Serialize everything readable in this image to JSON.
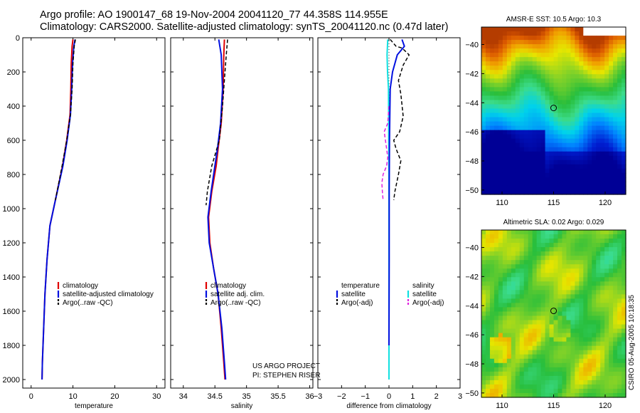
{
  "header": {
    "line1": "Argo profile: AO 1900147_68 19-Nov-2004 20041120_77 44.358S 114.955E",
    "line2": "Climatology: CARS2000. Satellite-adjusted climatology: synTS_20041120.nc (0.47d later)"
  },
  "credit": "CSIRO 05-Aug-2005 10:18:35",
  "project": {
    "line1": "US ARGO PROJECT",
    "line2": "PI: STEPHEN RISER"
  },
  "colors": {
    "red": "#e00000",
    "blue": "#0010e0",
    "black": "#000000",
    "cyan": "#10e0e0",
    "magenta": "#e020e0"
  },
  "chart_data": [
    {
      "type": "line",
      "xlabel": "temperature",
      "xlim": [
        -2,
        32
      ],
      "ylim": [
        0,
        2000
      ],
      "y_reversed": true,
      "xticks": [
        0,
        10,
        20,
        30
      ],
      "yticks": [
        0,
        200,
        400,
        600,
        800,
        1000,
        1200,
        1400,
        1600,
        1800,
        2000
      ],
      "legend": [
        {
          "label": "climatology",
          "color": "red",
          "dash": false
        },
        {
          "label": "satellite-adjusted climatology",
          "color": "blue",
          "dash": false
        },
        {
          "label": "Argo(..raw -QC)",
          "color": "black",
          "dash": true
        }
      ],
      "series": [
        {
          "color": "red",
          "width": 2,
          "points": [
            [
              10.0,
              10
            ],
            [
              9.8,
              50
            ],
            [
              9.6,
              150
            ],
            [
              9.5,
              300
            ],
            [
              9.3,
              450
            ],
            [
              8.5,
              600
            ],
            [
              7.5,
              750
            ],
            [
              5.8,
              950
            ],
            [
              4.5,
              1100
            ],
            [
              3.8,
              1300
            ],
            [
              3.3,
              1500
            ],
            [
              3.0,
              1700
            ],
            [
              2.7,
              1900
            ],
            [
              2.6,
              2000
            ]
          ]
        },
        {
          "color": "blue",
          "width": 2,
          "points": [
            [
              10.5,
              10
            ],
            [
              10.2,
              50
            ],
            [
              9.9,
              150
            ],
            [
              9.7,
              300
            ],
            [
              9.4,
              450
            ],
            [
              8.6,
              600
            ],
            [
              7.6,
              750
            ],
            [
              5.8,
              950
            ],
            [
              4.5,
              1100
            ],
            [
              3.8,
              1300
            ],
            [
              3.3,
              1500
            ],
            [
              3.0,
              1700
            ],
            [
              2.7,
              1900
            ],
            [
              2.6,
              2000
            ]
          ]
        },
        {
          "color": "black",
          "width": 1.5,
          "dash": true,
          "points": [
            [
              10.6,
              10
            ],
            [
              10.3,
              50
            ],
            [
              10.0,
              150
            ],
            [
              9.8,
              300
            ],
            [
              9.4,
              450
            ],
            [
              8.5,
              600
            ],
            [
              7.4,
              750
            ],
            [
              5.8,
              950
            ]
          ]
        }
      ]
    },
    {
      "type": "line",
      "xlabel": "salinity",
      "xlim": [
        33.8,
        36.05
      ],
      "ylim": [
        0,
        2000
      ],
      "y_reversed": true,
      "xticks": [
        34,
        34.5,
        35,
        35.5,
        36
      ],
      "legend": [
        {
          "label": "climatology",
          "color": "red",
          "dash": false
        },
        {
          "label": "satellite adj. clim.",
          "color": "blue",
          "dash": false
        },
        {
          "label": "Argo(..raw -QC)",
          "color": "black",
          "dash": true
        }
      ],
      "series": [
        {
          "color": "red",
          "width": 2,
          "points": [
            [
              34.65,
              10
            ],
            [
              34.64,
              100
            ],
            [
              34.63,
              300
            ],
            [
              34.6,
              500
            ],
            [
              34.55,
              650
            ],
            [
              34.52,
              750
            ],
            [
              34.45,
              900
            ],
            [
              34.4,
              1050
            ],
            [
              34.42,
              1200
            ],
            [
              34.48,
              1350
            ],
            [
              34.55,
              1500
            ],
            [
              34.6,
              1700
            ],
            [
              34.64,
              1900
            ],
            [
              34.66,
              2000
            ]
          ]
        },
        {
          "color": "blue",
          "width": 2,
          "points": [
            [
              34.56,
              10
            ],
            [
              34.6,
              100
            ],
            [
              34.62,
              300
            ],
            [
              34.59,
              500
            ],
            [
              34.54,
              650
            ],
            [
              34.5,
              750
            ],
            [
              34.44,
              900
            ],
            [
              34.39,
              1050
            ],
            [
              34.41,
              1200
            ],
            [
              34.48,
              1350
            ],
            [
              34.55,
              1500
            ],
            [
              34.61,
              1700
            ],
            [
              34.65,
              1900
            ],
            [
              34.67,
              2000
            ]
          ]
        },
        {
          "color": "black",
          "width": 1.5,
          "dash": true,
          "points": [
            [
              34.7,
              10
            ],
            [
              34.68,
              100
            ],
            [
              34.66,
              200
            ],
            [
              34.62,
              400
            ],
            [
              34.57,
              600
            ],
            [
              34.53,
              650
            ],
            [
              34.45,
              750
            ],
            [
              34.38,
              900
            ],
            [
              34.36,
              980
            ]
          ]
        }
      ]
    },
    {
      "type": "line",
      "xlabel": "difference from climatology",
      "xlim": [
        -3,
        3
      ],
      "ylim": [
        0,
        2000
      ],
      "y_reversed": true,
      "xticks": [
        -3,
        -2,
        -1,
        0,
        1,
        2,
        3
      ],
      "legend_left": [
        {
          "label": "temperature",
          "color": "",
          "dash": false
        },
        {
          "label": "satellite",
          "color": "blue",
          "dash": false
        },
        {
          "label": "Argo(-adj)",
          "color": "black",
          "dash": true
        }
      ],
      "legend_right": [
        {
          "label": "salinity",
          "color": "",
          "dash": false
        },
        {
          "label": "satellite",
          "color": "cyan",
          "dash": false
        },
        {
          "label": "Argo(-adj)",
          "color": "magenta",
          "dash": true
        }
      ],
      "series": [
        {
          "color": "cyan",
          "width": 2,
          "points": [
            [
              -0.05,
              10
            ],
            [
              -0.08,
              100
            ],
            [
              -0.06,
              200
            ],
            [
              -0.02,
              300
            ],
            [
              -0.01,
              600
            ],
            [
              0.0,
              900
            ],
            [
              0.0,
              1500
            ],
            [
              0.0,
              2000
            ]
          ]
        },
        {
          "color": "magenta",
          "width": 1.5,
          "dash": true,
          "points": [
            [
              0.0,
              400
            ],
            [
              -0.05,
              500
            ],
            [
              -0.2,
              550
            ],
            [
              -0.15,
              600
            ],
            [
              -0.1,
              650
            ],
            [
              -0.05,
              700
            ],
            [
              -0.1,
              750
            ],
            [
              -0.25,
              800
            ],
            [
              -0.3,
              850
            ],
            [
              -0.28,
              900
            ],
            [
              -0.25,
              950
            ]
          ]
        },
        {
          "color": "blue",
          "width": 2,
          "points": [
            [
              0.55,
              10
            ],
            [
              0.65,
              50
            ],
            [
              0.35,
              100
            ],
            [
              0.15,
              200
            ],
            [
              0.05,
              300
            ],
            [
              0.02,
              600
            ],
            [
              0.01,
              900
            ],
            [
              0.01,
              1300
            ],
            [
              0.0,
              1800
            ]
          ]
        },
        {
          "color": "black",
          "width": 1.5,
          "dash": true,
          "points": [
            [
              0.05,
              10
            ],
            [
              0.3,
              50
            ],
            [
              0.55,
              60
            ],
            [
              0.85,
              100
            ],
            [
              0.6,
              160
            ],
            [
              0.4,
              250
            ],
            [
              0.5,
              330
            ],
            [
              0.6,
              460
            ],
            [
              0.45,
              550
            ],
            [
              0.2,
              600
            ],
            [
              0.3,
              650
            ],
            [
              0.5,
              720
            ],
            [
              0.4,
              800
            ],
            [
              0.25,
              900
            ],
            [
              0.2,
              950
            ]
          ]
        }
      ],
      "zero_line": true
    },
    {
      "type": "heatmap",
      "title": "AMSR-E SST: 10.5 Argo: 10.3",
      "xlim": [
        108,
        122
      ],
      "ylim": [
        -50.3,
        -38.8
      ],
      "xticks": [
        110,
        115,
        120
      ],
      "yticks": [
        -40,
        -42,
        -44,
        -46,
        -48,
        -50
      ],
      "marker": [
        115,
        -44.36
      ]
    },
    {
      "type": "heatmap",
      "title": "Altimetric SLA: 0.02 Argo: 0.029",
      "xlim": [
        108,
        122
      ],
      "ylim": [
        -50.3,
        -38.8
      ],
      "xticks": [
        110,
        115,
        120
      ],
      "yticks": [
        -40,
        -42,
        -44,
        -46,
        -48,
        -50
      ],
      "marker": [
        115,
        -44.36
      ]
    }
  ]
}
